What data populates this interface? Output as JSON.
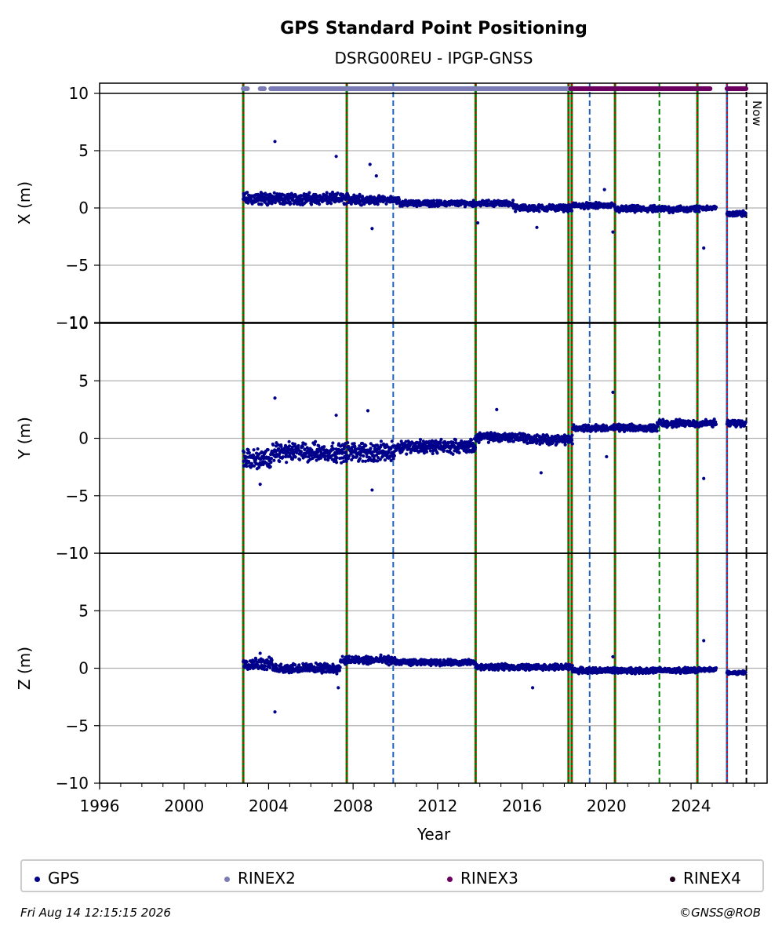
{
  "chart_data": {
    "type": "scatter",
    "title": "GPS Standard Point Positioning",
    "subtitle": "DSRG00REU - IPGP-GNSS",
    "xlabel": "Year",
    "x_ticks": [
      "1996",
      "2000",
      "2004",
      "2008",
      "2012",
      "2016",
      "2020",
      "2024"
    ],
    "xlim": [
      1996,
      2027.6
    ],
    "now_label": "Now",
    "now_x": 2026.62,
    "panels": [
      {
        "ylabel": "X (m)",
        "ylim": [
          -10,
          10
        ],
        "yticks": [
          "10",
          "5",
          "0",
          "−5",
          "−10"
        ],
        "yvals": [
          10,
          5,
          0,
          -5,
          -10
        ],
        "series": [
          {
            "name": "GPS",
            "segments": [
              {
                "x": [
                  2002.8,
                  2004.2
                ],
                "base": 0.8,
                "spread": 0.7
              },
              {
                "x": [
                  2004.2,
                  2008.5
                ],
                "base": 0.8,
                "spread": 0.6
              },
              {
                "x": [
                  2008.5,
                  2010.2
                ],
                "base": 0.7,
                "spread": 0.4
              },
              {
                "x": [
                  2010.2,
                  2013.8
                ],
                "base": 0.4,
                "spread": 0.3
              },
              {
                "x": [
                  2013.8,
                  2015.6
                ],
                "base": 0.4,
                "spread": 0.3
              },
              {
                "x": [
                  2015.6,
                  2018.4
                ],
                "base": 0.0,
                "spread": 0.35
              },
              {
                "x": [
                  2018.4,
                  2020.4
                ],
                "base": 0.2,
                "spread": 0.3
              },
              {
                "x": [
                  2020.4,
                  2024.4
                ],
                "base": -0.1,
                "spread": 0.35
              },
              {
                "x": [
                  2024.4,
                  2025.2
                ],
                "base": 0.0,
                "spread": 0.2
              },
              {
                "x": [
                  2025.7,
                  2026.6
                ],
                "base": -0.5,
                "spread": 0.3
              }
            ],
            "outliers": [
              [
                2004.3,
                5.8
              ],
              [
                2007.2,
                4.5
              ],
              [
                2008.8,
                3.8
              ],
              [
                2009.1,
                2.8
              ],
              [
                2008.9,
                -1.8
              ],
              [
                2016.7,
                -1.7
              ],
              [
                2020.3,
                -2.1
              ],
              [
                2019.9,
                1.6
              ],
              [
                2024.6,
                -3.5
              ],
              [
                2013.9,
                -1.3
              ]
            ]
          }
        ]
      },
      {
        "ylabel": "Y (m)",
        "ylim": [
          -10,
          10
        ],
        "yticks": [
          "10",
          "5",
          "0",
          "−5",
          "−10"
        ],
        "yvals": [
          10,
          5,
          0,
          -5,
          -10
        ],
        "series": [
          {
            "name": "GPS",
            "segments": [
              {
                "x": [
                  2002.8,
                  2004.2
                ],
                "base": -1.8,
                "spread": 1.0
              },
              {
                "x": [
                  2004.2,
                  2010.0
                ],
                "base": -1.2,
                "spread": 1.0
              },
              {
                "x": [
                  2010.0,
                  2013.8
                ],
                "base": -0.7,
                "spread": 0.7
              },
              {
                "x": [
                  2013.8,
                  2016.2
                ],
                "base": 0.1,
                "spread": 0.5
              },
              {
                "x": [
                  2016.2,
                  2018.4
                ],
                "base": -0.1,
                "spread": 0.5
              },
              {
                "x": [
                  2018.4,
                  2022.4
                ],
                "base": 0.9,
                "spread": 0.35
              },
              {
                "x": [
                  2022.4,
                  2025.2
                ],
                "base": 1.3,
                "spread": 0.4
              },
              {
                "x": [
                  2025.7,
                  2026.6
                ],
                "base": 1.3,
                "spread": 0.35
              }
            ],
            "outliers": [
              [
                2004.3,
                3.5
              ],
              [
                2007.2,
                2.0
              ],
              [
                2008.9,
                -4.5
              ],
              [
                2008.7,
                2.4
              ],
              [
                2014.8,
                2.5
              ],
              [
                2016.9,
                -3.0
              ],
              [
                2020.3,
                4.0
              ],
              [
                2024.6,
                -3.5
              ],
              [
                2003.6,
                -4.0
              ],
              [
                2020.0,
                -1.6
              ]
            ]
          }
        ]
      },
      {
        "ylabel": "Z (m)",
        "ylim": [
          -10,
          10
        ],
        "yticks": [
          "10",
          "5",
          "0",
          "−5",
          "−10"
        ],
        "yvals": [
          10,
          5,
          0,
          -5,
          -10
        ],
        "series": [
          {
            "name": "GPS",
            "segments": [
              {
                "x": [
                  2002.8,
                  2004.2
                ],
                "base": 0.4,
                "spread": 0.6
              },
              {
                "x": [
                  2004.2,
                  2007.4
                ],
                "base": 0.0,
                "spread": 0.5
              },
              {
                "x": [
                  2007.4,
                  2010.0
                ],
                "base": 0.7,
                "spread": 0.45
              },
              {
                "x": [
                  2010.0,
                  2013.8
                ],
                "base": 0.5,
                "spread": 0.3
              },
              {
                "x": [
                  2013.8,
                  2018.4
                ],
                "base": 0.1,
                "spread": 0.3
              },
              {
                "x": [
                  2018.4,
                  2024.4
                ],
                "base": -0.2,
                "spread": 0.3
              },
              {
                "x": [
                  2024.4,
                  2025.2
                ],
                "base": -0.1,
                "spread": 0.2
              },
              {
                "x": [
                  2025.7,
                  2026.6
                ],
                "base": -0.4,
                "spread": 0.2
              }
            ],
            "outliers": [
              [
                2004.3,
                -3.8
              ],
              [
                2007.3,
                -1.7
              ],
              [
                2016.5,
                -1.7
              ],
              [
                2024.6,
                2.4
              ],
              [
                2020.3,
                1.0
              ],
              [
                2003.6,
                1.3
              ]
            ]
          }
        ]
      }
    ],
    "availability": [
      {
        "name": "RINEX2",
        "color": "#7b7bb5",
        "ranges": [
          [
            2002.8,
            2003.0
          ],
          [
            2003.6,
            2003.8
          ],
          [
            2004.1,
            2018.3
          ]
        ]
      },
      {
        "name": "RINEX3",
        "color": "#6b0060",
        "ranges": [
          [
            2018.3,
            2024.9
          ],
          [
            2025.7,
            2026.6
          ]
        ]
      }
    ],
    "events": [
      {
        "x": 2002.8,
        "style": "red-green"
      },
      {
        "x": 2007.7,
        "style": "red-green"
      },
      {
        "x": 2009.9,
        "style": "blue"
      },
      {
        "x": 2013.8,
        "style": "red-green"
      },
      {
        "x": 2018.2,
        "style": "red-green"
      },
      {
        "x": 2018.35,
        "style": "red-green"
      },
      {
        "x": 2019.2,
        "style": "blue"
      },
      {
        "x": 2020.4,
        "style": "red-green"
      },
      {
        "x": 2022.5,
        "style": "green"
      },
      {
        "x": 2024.3,
        "style": "red-green"
      },
      {
        "x": 2025.7,
        "style": "red-blue"
      }
    ],
    "legend": [
      {
        "name": "GPS",
        "color": "#00008b"
      },
      {
        "name": "RINEX2",
        "color": "#7b7bb5"
      },
      {
        "name": "RINEX3",
        "color": "#6b0060"
      },
      {
        "name": "RINEX4",
        "color": "#200018"
      }
    ]
  },
  "footer": {
    "timestamp": "Fri Aug 14 12:15:15 2026",
    "credit": "©GNSS@ROB"
  }
}
